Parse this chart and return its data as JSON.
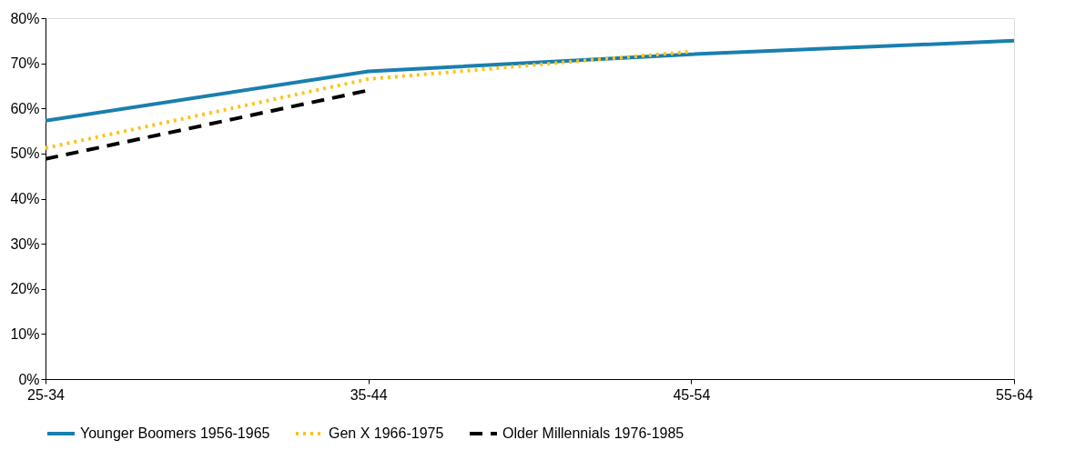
{
  "chart_data": {
    "type": "line",
    "categories": [
      "25-34",
      "35-44",
      "45-54",
      "55-64"
    ],
    "series": [
      {
        "name": "Younger Boomers 1956-1965",
        "color": "#1a7fae",
        "line_style": "solid",
        "values": [
          57.3,
          68.2,
          72.0,
          75.0
        ]
      },
      {
        "name": "Gen X 1966-1975",
        "color": "#fcc419",
        "line_style": "dotted",
        "values": [
          51.2,
          66.5,
          72.6,
          null
        ]
      },
      {
        "name": "Older Millennials 1976-1985",
        "color": "#000000",
        "line_style": "dashed",
        "values": [
          48.8,
          64.0,
          null,
          null
        ]
      }
    ],
    "ylim": [
      0,
      80
    ],
    "yticks": [
      {
        "value": 0,
        "label": "0%"
      },
      {
        "value": 10,
        "label": "10%"
      },
      {
        "value": 20,
        "label": "20%"
      },
      {
        "value": 30,
        "label": "30%"
      },
      {
        "value": 40,
        "label": "40%"
      },
      {
        "value": 50,
        "label": "50%"
      },
      {
        "value": 60,
        "label": "60%"
      },
      {
        "value": 70,
        "label": "70%"
      },
      {
        "value": 80,
        "label": "80%"
      }
    ],
    "grid": false,
    "legend": "bottom",
    "marker": "none"
  }
}
